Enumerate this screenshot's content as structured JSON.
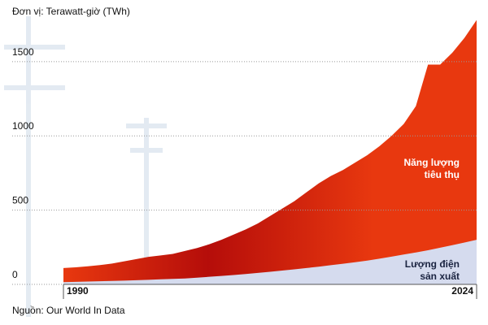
{
  "chart_data": {
    "type": "area",
    "title": "Đơn vị: Terawatt-giờ (TWh)",
    "source": "Nguồn: Our World In Data",
    "x": [
      1990,
      1991,
      1992,
      1993,
      1994,
      1995,
      1996,
      1997,
      1998,
      1999,
      2000,
      2001,
      2002,
      2003,
      2004,
      2005,
      2006,
      2007,
      2008,
      2009,
      2010,
      2011,
      2012,
      2013,
      2014,
      2015,
      2016,
      2017,
      2018,
      2019,
      2020,
      2021,
      2022,
      2023,
      2024
    ],
    "series": [
      {
        "name": "Năng lượng\ntiêu thụ",
        "color": "#e8380f",
        "values": [
          110,
          115,
          122,
          130,
          140,
          155,
          170,
          185,
          195,
          205,
          225,
          245,
          270,
          300,
          335,
          370,
          410,
          460,
          510,
          560,
          620,
          680,
          730,
          770,
          820,
          870,
          930,
          1000,
          1080,
          1200,
          1480,
          1480,
          1560,
          1660,
          1780
        ]
      },
      {
        "name": "Lượng điện\nsản xuất",
        "color": "#d5dbee",
        "values": [
          15,
          17,
          19,
          21,
          23,
          25,
          28,
          31,
          34,
          37,
          40,
          45,
          51,
          57,
          63,
          70,
          77,
          85,
          93,
          101,
          110,
          119,
          129,
          139,
          149,
          160,
          173,
          187,
          201,
          215,
          230,
          247,
          264,
          282,
          300
        ]
      }
    ],
    "xlim": [
      1990,
      2024
    ],
    "xticks": [
      1990,
      2024
    ],
    "ylim": [
      0,
      1800
    ],
    "yticks": [
      0,
      500,
      1000,
      1500
    ],
    "grid": true
  }
}
